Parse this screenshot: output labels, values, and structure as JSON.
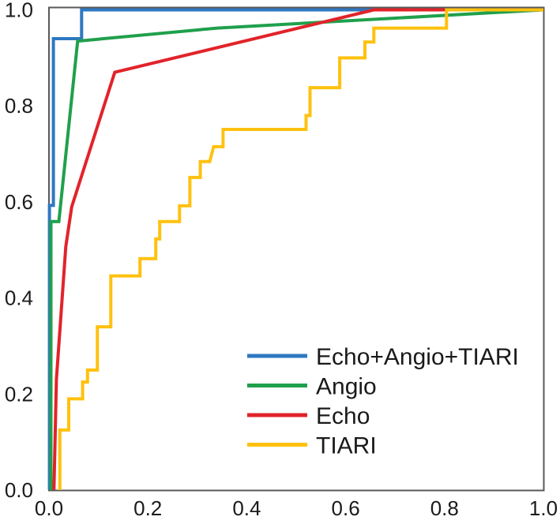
{
  "chart_data": {
    "type": "line",
    "subtype": "roc-step-curves",
    "title": "",
    "xlabel": "",
    "ylabel": "",
    "xlim": [
      0,
      1
    ],
    "ylim": [
      0,
      1
    ],
    "grid": false,
    "x_tick_values": [
      0,
      0.2,
      0.4,
      0.6,
      0.8,
      1.0
    ],
    "y_tick_values": [
      0,
      0.2,
      0.4,
      0.6,
      0.8,
      1.0
    ],
    "x_tick_labels": [
      "0.0",
      "0.2",
      "0.4",
      "0.6",
      "0.8",
      "1.0"
    ],
    "y_tick_labels": [
      "0.0",
      "0.2",
      "0.4",
      "0.6",
      "0.8",
      "1.0"
    ],
    "axis_border_color": "#595959",
    "text_color": "#1a1a1a",
    "legend_position": "inside-bottom-right",
    "series": [
      {
        "name": "Echo+Angio+TIARI",
        "color": "#2E78C2",
        "points": [
          [
            0.001,
            0
          ],
          [
            0.001,
            0.593
          ],
          [
            0.009,
            0.593
          ],
          [
            0.009,
            0.94
          ],
          [
            0.066,
            0.94
          ],
          [
            0.066,
            1.0
          ],
          [
            1,
            1
          ]
        ]
      },
      {
        "name": "Angio",
        "color": "#1FA04C",
        "points": [
          [
            0.004,
            0
          ],
          [
            0.004,
            0.559
          ],
          [
            0.02,
            0.559
          ],
          [
            0.058,
            0.935
          ],
          [
            0.34,
            0.962
          ],
          [
            1,
            1
          ]
        ]
      },
      {
        "name": "Echo",
        "color": "#E2232A",
        "points": [
          [
            0.01,
            0
          ],
          [
            0.015,
            0.23
          ],
          [
            0.034,
            0.507
          ],
          [
            0.046,
            0.59
          ],
          [
            0.133,
            0.87
          ],
          [
            0.657,
            1.0
          ],
          [
            0.8,
            1.0
          ],
          [
            1,
            1
          ]
        ]
      },
      {
        "name": "TIARI",
        "color": "#FFC10E",
        "points": [
          [
            0.022,
            0
          ],
          [
            0.022,
            0.125
          ],
          [
            0.04,
            0.125
          ],
          [
            0.04,
            0.19
          ],
          [
            0.068,
            0.19
          ],
          [
            0.068,
            0.225
          ],
          [
            0.078,
            0.225
          ],
          [
            0.078,
            0.25
          ],
          [
            0.098,
            0.25
          ],
          [
            0.098,
            0.34
          ],
          [
            0.125,
            0.34
          ],
          [
            0.125,
            0.446
          ],
          [
            0.184,
            0.446
          ],
          [
            0.184,
            0.482
          ],
          [
            0.216,
            0.482
          ],
          [
            0.216,
            0.523
          ],
          [
            0.224,
            0.523
          ],
          [
            0.224,
            0.559
          ],
          [
            0.264,
            0.559
          ],
          [
            0.264,
            0.592
          ],
          [
            0.285,
            0.592
          ],
          [
            0.285,
            0.651
          ],
          [
            0.306,
            0.651
          ],
          [
            0.306,
            0.684
          ],
          [
            0.325,
            0.684
          ],
          [
            0.333,
            0.715
          ],
          [
            0.352,
            0.715
          ],
          [
            0.352,
            0.751
          ],
          [
            0.52,
            0.751
          ],
          [
            0.52,
            0.78
          ],
          [
            0.528,
            0.78
          ],
          [
            0.528,
            0.838
          ],
          [
            0.588,
            0.838
          ],
          [
            0.588,
            0.9
          ],
          [
            0.639,
            0.9
          ],
          [
            0.639,
            0.933
          ],
          [
            0.657,
            0.933
          ],
          [
            0.657,
            0.962
          ],
          [
            0.804,
            0.962
          ],
          [
            0.804,
            1.0
          ],
          [
            1,
            1
          ]
        ]
      }
    ]
  }
}
